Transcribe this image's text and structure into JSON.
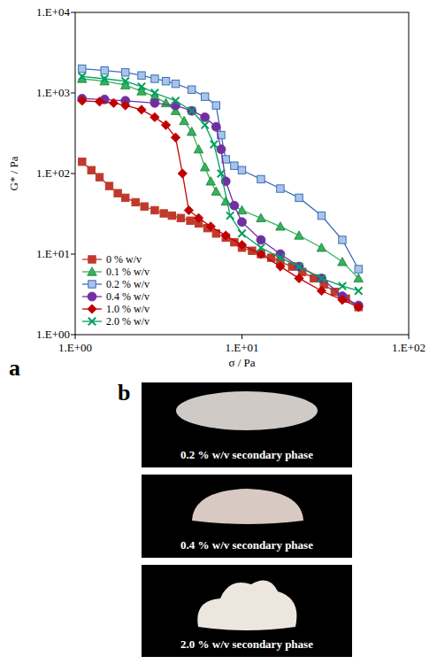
{
  "chart_data": {
    "type": "line",
    "panel_label": "a",
    "x_label": "σ / Pa",
    "y_label": "G* / Pa",
    "log": true,
    "grid": false,
    "legend": "lower-left",
    "xlim": [
      1,
      100
    ],
    "ylim": [
      1,
      10000
    ],
    "xticks": [
      {
        "value": 1,
        "label": "1.E+00"
      },
      {
        "value": 10,
        "label": "1.E+01"
      },
      {
        "value": 100,
        "label": "1.E+02"
      }
    ],
    "yticks": [
      {
        "value": 1,
        "label": "1.E+00"
      },
      {
        "value": 10,
        "label": "1.E+01"
      },
      {
        "value": 100,
        "label": "1.E+02"
      },
      {
        "value": 1000,
        "label": "1.E+03"
      },
      {
        "value": 10000,
        "label": "1.E+04"
      }
    ],
    "series": [
      {
        "name": "0 % w/v",
        "color": "#c0392b",
        "marker": "square",
        "x": [
          1.1,
          1.25,
          1.4,
          1.6,
          1.8,
          2.0,
          2.3,
          2.6,
          3.0,
          3.4,
          3.8,
          4.3,
          4.9,
          5.5,
          6.2,
          7,
          8,
          9,
          10,
          11.5,
          13,
          15,
          17,
          20,
          23,
          27,
          31,
          36,
          42,
          50
        ],
        "values": [
          140,
          110,
          90,
          70,
          57,
          50,
          44,
          39,
          35,
          32,
          30,
          28,
          26,
          24,
          21,
          18,
          16,
          14,
          12,
          11,
          10,
          9,
          8,
          7,
          6,
          5,
          4.2,
          3.4,
          2.8,
          2.2
        ]
      },
      {
        "name": "0.1 % w/v",
        "color": "#33b35a",
        "marker": "triangle",
        "x": [
          1.1,
          1.5,
          2,
          2.5,
          3,
          3.5,
          4,
          4.5,
          5,
          5.5,
          6,
          6.5,
          7,
          8,
          10,
          13,
          17,
          22,
          30,
          40,
          50
        ],
        "values": [
          1500,
          1400,
          1250,
          1050,
          900,
          750,
          600,
          450,
          330,
          200,
          120,
          80,
          60,
          45,
          35,
          28,
          22,
          17,
          12,
          8,
          5
        ]
      },
      {
        "name": "0.2 % w/v",
        "color": "#a9c4eb",
        "marker": "square",
        "x": [
          1.1,
          1.5,
          2,
          2.5,
          3,
          3.5,
          4,
          5,
          6,
          7,
          7.5,
          8,
          9,
          10,
          13,
          17,
          22,
          30,
          40,
          50
        ],
        "values": [
          2000,
          1900,
          1800,
          1650,
          1500,
          1400,
          1300,
          1100,
          900,
          700,
          300,
          150,
          125,
          110,
          85,
          65,
          50,
          30,
          15,
          6.5
        ]
      },
      {
        "name": "0.4 % w/v",
        "color": "#7030a0",
        "marker": "circle",
        "x": [
          1.1,
          1.5,
          2,
          3,
          4,
          5,
          6,
          7,
          7.5,
          8,
          9,
          10,
          13,
          17,
          22,
          30,
          40,
          50
        ],
        "values": [
          850,
          830,
          800,
          750,
          700,
          600,
          500,
          380,
          200,
          80,
          40,
          25,
          15,
          10,
          7,
          5,
          3,
          2.3
        ]
      },
      {
        "name": "1.0 % w/v",
        "color": "#c00000",
        "marker": "diamond",
        "x": [
          1.1,
          1.4,
          1.7,
          2,
          2.5,
          3,
          3.5,
          4,
          4.4,
          4.8,
          5.5,
          6.5,
          8,
          10,
          13,
          17,
          22,
          30,
          40,
          50
        ],
        "values": [
          800,
          780,
          750,
          700,
          620,
          500,
          400,
          280,
          100,
          35,
          28,
          22,
          17,
          13,
          10,
          7,
          5,
          3.5,
          2.7,
          2.2
        ]
      },
      {
        "name": "2.0 % w/v",
        "color": "#00a060",
        "marker": "x",
        "x": [
          1.1,
          1.5,
          2,
          2.5,
          3,
          4,
          5,
          6,
          6.8,
          7.5,
          8.5,
          10,
          13,
          17,
          22,
          30,
          40,
          50
        ],
        "values": [
          1600,
          1500,
          1400,
          1200,
          1000,
          800,
          600,
          400,
          230,
          100,
          30,
          18,
          12,
          9,
          7,
          5,
          4,
          3.5
        ]
      }
    ]
  },
  "photos": {
    "panel_label": "b",
    "captions": [
      "0.2 % w/v secondary phase",
      "0.4 % w/v secondary phase",
      "2.0 % w/v secondary phase"
    ]
  }
}
